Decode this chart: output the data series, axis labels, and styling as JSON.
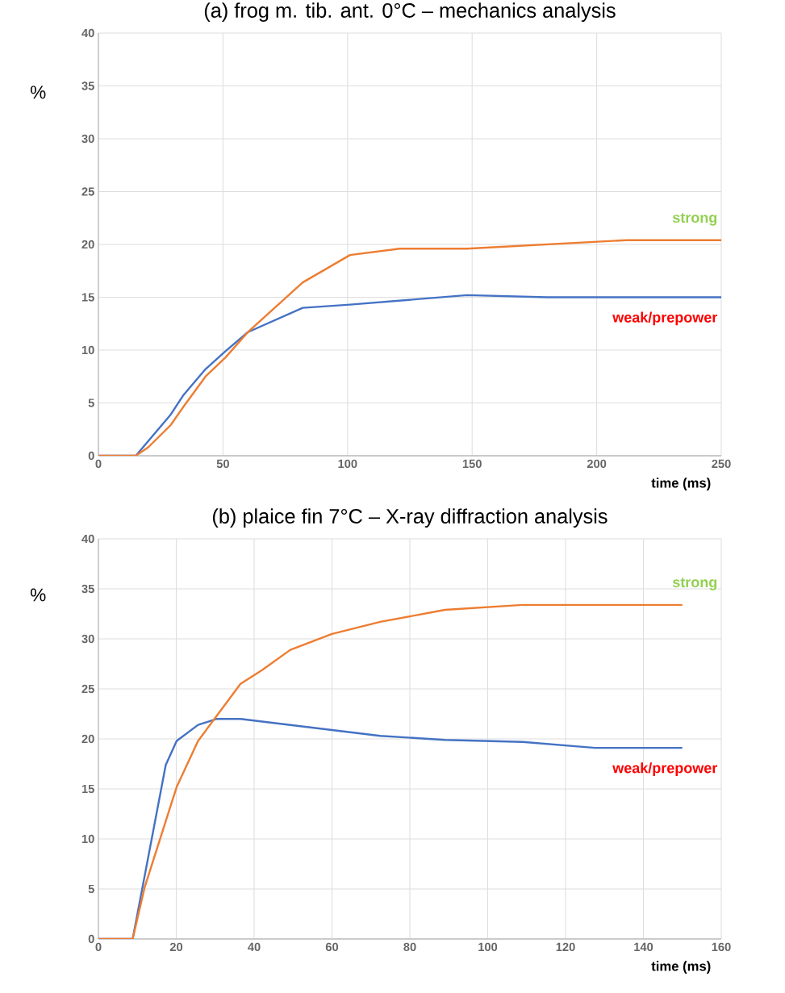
{
  "chart_data": [
    {
      "type": "line",
      "title": "(a) frog m. tib. ant. 0°C – mechanics analysis",
      "xlabel": "time (ms)",
      "ylabel": "%",
      "series": [
        {
          "name": "weak/prepower",
          "color": "#4472c4",
          "x": [
            0,
            15,
            29,
            34,
            43,
            51,
            60,
            82,
            101,
            148,
            180,
            250
          ],
          "values": [
            0,
            0,
            3.9,
            5.7,
            8.2,
            9.9,
            11.7,
            14.0,
            14.3,
            15.2,
            15.0,
            15.0
          ]
        },
        {
          "name": "strong",
          "color": "#ed7d31",
          "x": [
            0,
            15,
            20,
            29,
            34,
            43,
            51,
            60,
            82,
            101,
            121,
            148,
            212,
            250
          ],
          "values": [
            0,
            0,
            0.8,
            2.9,
            4.6,
            7.5,
            9.3,
            11.7,
            16.4,
            19.0,
            19.6,
            19.6,
            20.4,
            20.4
          ]
        }
      ],
      "xlim": [
        0,
        250
      ],
      "xticks": [
        0,
        50,
        100,
        150,
        200,
        250
      ],
      "ylim": [
        0,
        40
      ],
      "yticks": [
        0,
        5,
        10,
        15,
        20,
        25,
        30,
        35,
        40
      ],
      "grid": true,
      "marker": "none"
    },
    {
      "type": "line",
      "title": "(b) plaice fin 7°C – X-ray diffraction analysis",
      "xlabel": "time (ms)",
      "ylabel": "%",
      "series": [
        {
          "name": "weak/prepower",
          "color": "#4472c4",
          "x": [
            0,
            8.8,
            17.3,
            20.1,
            25.6,
            30.4,
            36.5,
            72.4,
            89,
            109,
            127.6,
            150
          ],
          "values": [
            0,
            0,
            17.4,
            19.8,
            21.4,
            22.0,
            22.0,
            20.3,
            19.9,
            19.7,
            19.1,
            19.1
          ]
        },
        {
          "name": "strong",
          "color": "#ed7d31",
          "x": [
            0,
            8.8,
            11.9,
            20.1,
            25.6,
            36.5,
            42.1,
            49.3,
            60,
            72.4,
            89,
            109,
            150
          ],
          "values": [
            0,
            0,
            5.2,
            15.2,
            19.8,
            25.5,
            26.9,
            28.9,
            30.5,
            31.7,
            32.9,
            33.4,
            33.4
          ]
        }
      ],
      "xlim": [
        0,
        160
      ],
      "xticks": [
        0,
        20,
        40,
        60,
        80,
        100,
        120,
        140,
        160
      ],
      "ylim": [
        0,
        40
      ],
      "yticks": [
        0,
        5,
        10,
        15,
        20,
        25,
        30,
        35,
        40
      ],
      "grid": true,
      "marker": "none"
    }
  ]
}
